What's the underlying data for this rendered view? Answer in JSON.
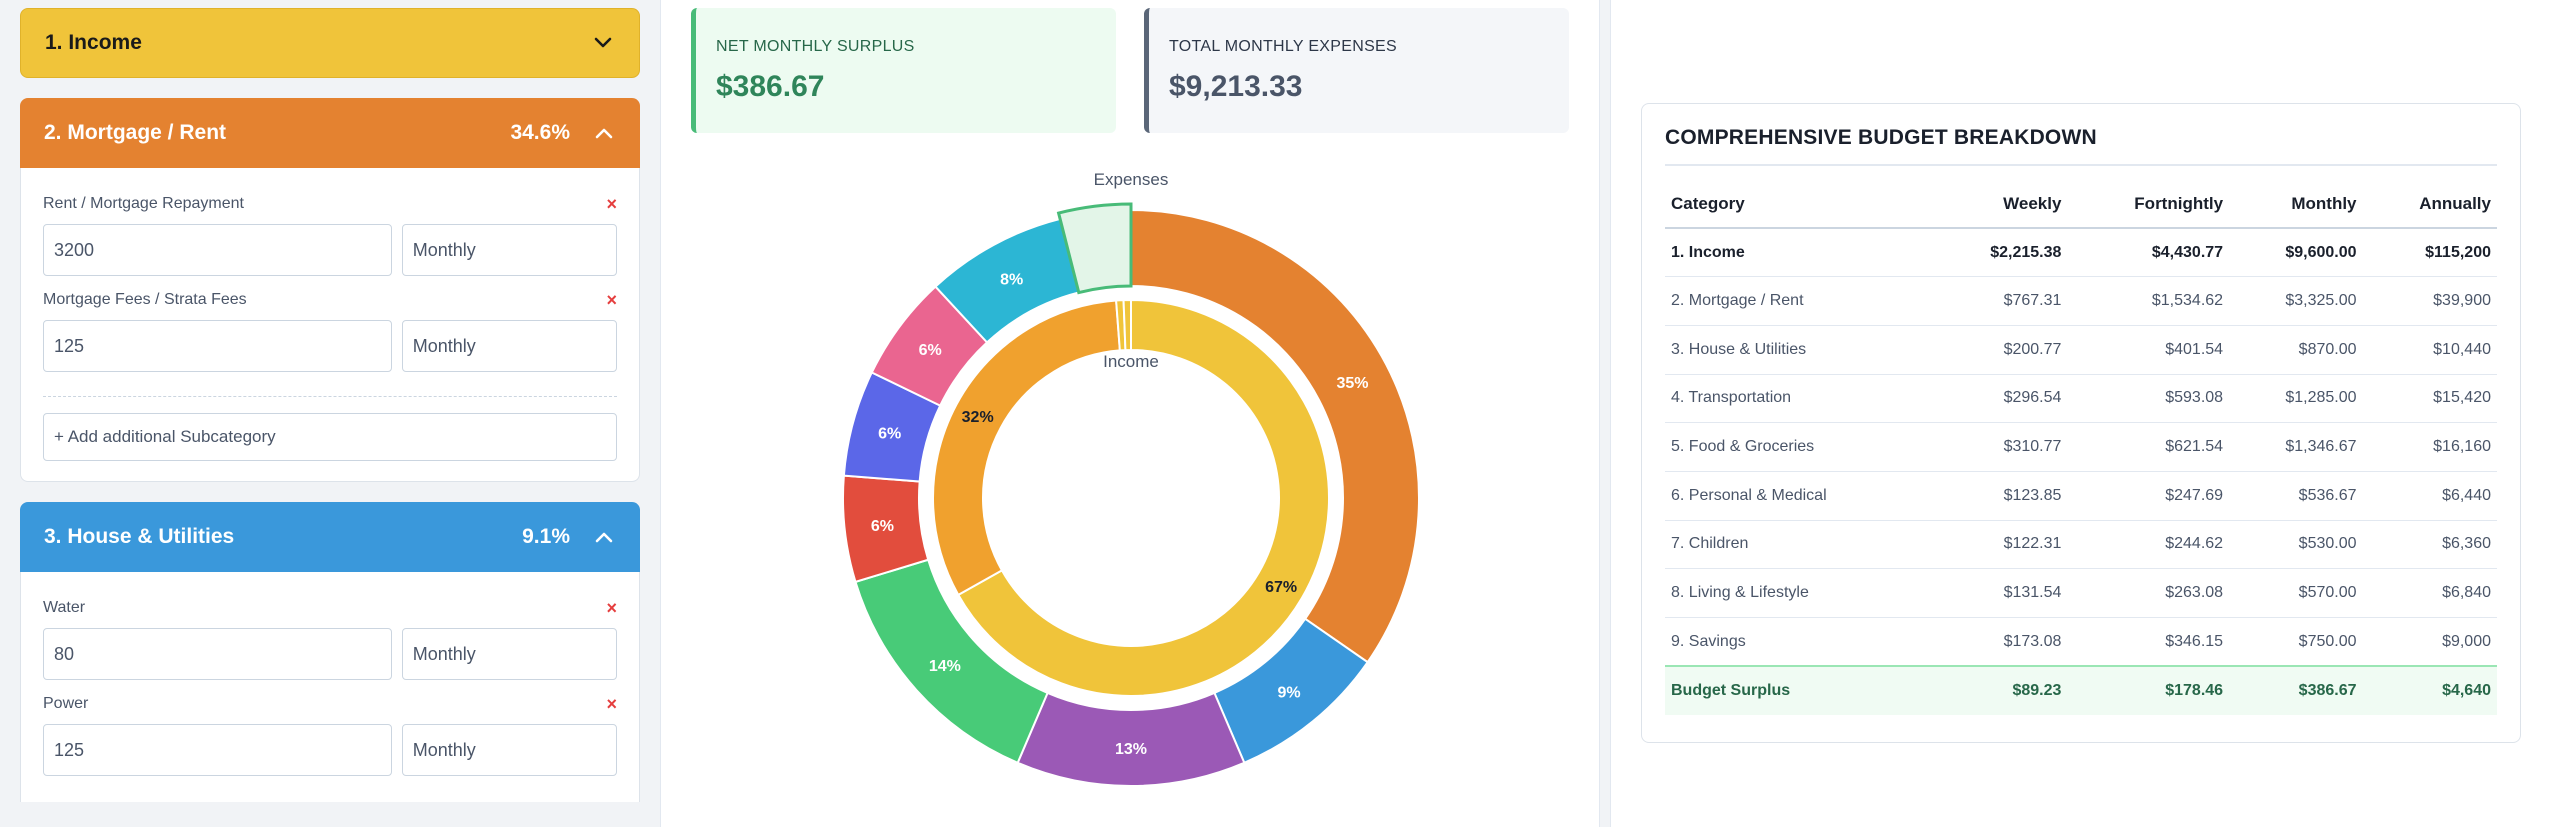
{
  "accordions": {
    "income": {
      "title": "1. Income"
    },
    "mortgage": {
      "title": "2. Mortgage / Rent",
      "percent": "34.6%",
      "items": [
        {
          "label": "Rent / Mortgage Repayment",
          "value": "3200",
          "frequency": "Monthly"
        },
        {
          "label": "Mortgage Fees / Strata Fees",
          "value": "125",
          "frequency": "Monthly"
        }
      ],
      "add_label": "+ Add additional Subcategory"
    },
    "house": {
      "title": "3. House & Utilities",
      "percent": "9.1%",
      "items": [
        {
          "label": "Water",
          "value": "80",
          "frequency": "Monthly"
        },
        {
          "label": "Power",
          "value": "125",
          "frequency": "Monthly"
        }
      ]
    },
    "remove_glyph": "×"
  },
  "cards": {
    "surplus": {
      "label": "NET MONTHLY SURPLUS",
      "value": "$386.67"
    },
    "expenses": {
      "label": "TOTAL MONTHLY EXPENSES",
      "value": "$9,213.33"
    }
  },
  "chart_data": {
    "type": "pie",
    "variant": "nested-donut",
    "outer_label": "Expenses",
    "inner_label": "Income",
    "outer": {
      "slices": [
        {
          "value": 35,
          "label": "35%",
          "color": "#e48230"
        },
        {
          "value": 9,
          "label": "9%",
          "color": "#3a98db"
        },
        {
          "value": 13,
          "label": "13%",
          "color": "#9b59b6"
        },
        {
          "value": 14,
          "label": "14%",
          "color": "#48cb78"
        },
        {
          "value": 6,
          "label": "6%",
          "color": "#e24d3d"
        },
        {
          "value": 6,
          "label": "6%",
          "color": "#5b67e8"
        },
        {
          "value": 6,
          "label": "6%",
          "color": "#ea6590"
        },
        {
          "value": 8,
          "label": "8%",
          "color": "#2cb6d4"
        },
        {
          "value": 4,
          "label": "",
          "color": "#e3f5e8",
          "highlighted": true
        }
      ]
    },
    "inner": {
      "slices": [
        {
          "value": 67,
          "label": "67%",
          "color": "#f0c43a"
        },
        {
          "value": 32,
          "label": "32%",
          "color": "#f0a12e"
        },
        {
          "value": 0.6,
          "label": "",
          "color": "#f0c43a"
        },
        {
          "value": 0.6,
          "label": "",
          "color": "#f0c43a"
        }
      ]
    }
  },
  "breakdown": {
    "title": "COMPREHENSIVE BUDGET BREAKDOWN",
    "headers": [
      "Category",
      "Weekly",
      "Fortnightly",
      "Monthly",
      "Annually"
    ],
    "rows": [
      [
        "1. Income",
        "$2,215.38",
        "$4,430.77",
        "$9,600.00",
        "$115,200"
      ],
      [
        "2. Mortgage / Rent",
        "$767.31",
        "$1,534.62",
        "$3,325.00",
        "$39,900"
      ],
      [
        "3. House & Utilities",
        "$200.77",
        "$401.54",
        "$870.00",
        "$10,440"
      ],
      [
        "4. Transportation",
        "$296.54",
        "$593.08",
        "$1,285.00",
        "$15,420"
      ],
      [
        "5. Food & Groceries",
        "$310.77",
        "$621.54",
        "$1,346.67",
        "$16,160"
      ],
      [
        "6. Personal & Medical",
        "$123.85",
        "$247.69",
        "$536.67",
        "$6,440"
      ],
      [
        "7. Children",
        "$122.31",
        "$244.62",
        "$530.00",
        "$6,360"
      ],
      [
        "8. Living & Lifestyle",
        "$131.54",
        "$263.08",
        "$570.00",
        "$6,840"
      ],
      [
        "9. Savings",
        "$173.08",
        "$346.15",
        "$750.00",
        "$9,000"
      ]
    ],
    "surplus_row": [
      "Budget Surplus",
      "$89.23",
      "$178.46",
      "$386.67",
      "$4,640"
    ]
  }
}
